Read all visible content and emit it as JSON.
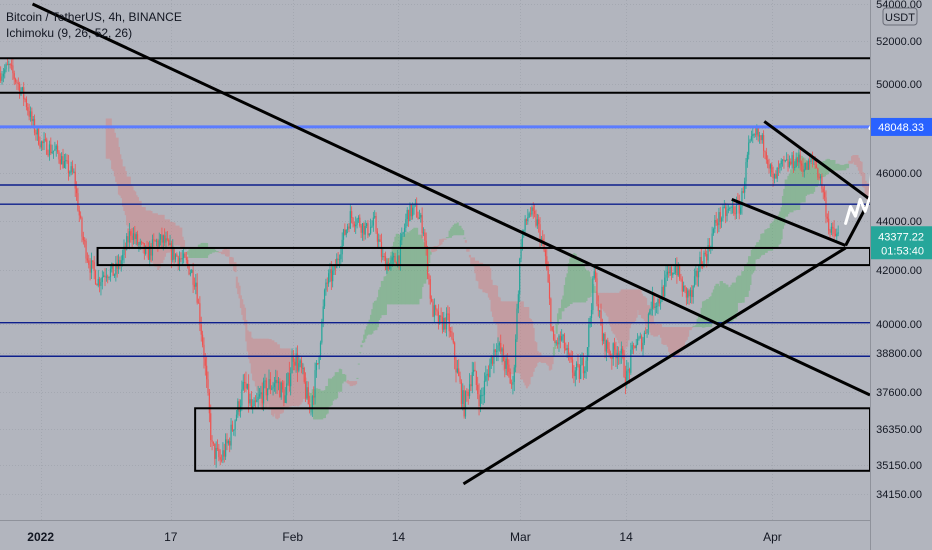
{
  "header": {
    "symbol_line": "Bitcoin / TetherUS, 4h, BINANCE",
    "indicator_line": "Ichimoku (9, 26, 52, 26)"
  },
  "currency_badge": "USDT",
  "colors": {
    "background": "#b2b5be",
    "up_candle": "#26a69a",
    "down_candle": "#ef5350",
    "drawing_black": "#000000",
    "level_blue": "#0d1f8c",
    "highlight_blue": "#5b7cff",
    "price_label_bg": "#2962ff",
    "cloud_green": "#5bb56a",
    "cloud_red": "#d98080",
    "arrow": "#ffffff"
  },
  "chart_data": {
    "type": "candlestick",
    "title": "Bitcoin / TetherUS, 4h, BINANCE",
    "indicator": "Ichimoku (9, 26, 52, 26)",
    "timeframe": "4h",
    "y_axis": {
      "ticks": [
        "54000.00",
        "52000.00",
        "50000.00",
        "48000.00",
        "46000.00",
        "44000.00",
        "42000.00",
        "40000.00",
        "38800.00",
        "37600.00",
        "36350.00",
        "35150.00",
        "34150.00"
      ],
      "ylim": [
        33200,
        54200
      ]
    },
    "x_axis": {
      "ticks": [
        {
          "label": "2022",
          "bold": true,
          "date": "2022-01-01"
        },
        {
          "label": "17",
          "bold": false,
          "date": "2022-01-17"
        },
        {
          "label": "Feb",
          "bold": false,
          "date": "2022-02-01"
        },
        {
          "label": "14",
          "bold": false,
          "date": "2022-02-14"
        },
        {
          "label": "Mar",
          "bold": false,
          "date": "2022-03-01"
        },
        {
          "label": "14",
          "bold": false,
          "date": "2022-03-14"
        },
        {
          "label": "Apr",
          "bold": false,
          "date": "2022-04-01"
        }
      ],
      "xlim": [
        "2021-12-27",
        "2022-04-13"
      ]
    },
    "current_price": {
      "value": "43377.22",
      "countdown": "01:53:40"
    },
    "highlighted_level": "48048.33",
    "price_path": [
      [
        "2021-12-27",
        50500
      ],
      [
        "2021-12-28",
        50800
      ],
      [
        "2021-12-29",
        50100
      ],
      [
        "2021-12-30",
        49300
      ],
      [
        "2021-12-31",
        48100
      ],
      [
        "2022-01-01",
        47300
      ],
      [
        "2022-01-02",
        47100
      ],
      [
        "2022-01-03",
        46900
      ],
      [
        "2022-01-04",
        46300
      ],
      [
        "2022-01-05",
        45900
      ],
      [
        "2022-01-06",
        43400
      ],
      [
        "2022-01-07",
        42200
      ],
      [
        "2022-01-08",
        41600
      ],
      [
        "2022-01-09",
        42000
      ],
      [
        "2022-01-10",
        41900
      ],
      [
        "2022-01-11",
        42500
      ],
      [
        "2022-01-12",
        43600
      ],
      [
        "2022-01-13",
        43000
      ],
      [
        "2022-01-14",
        42600
      ],
      [
        "2022-01-15",
        43100
      ],
      [
        "2022-01-16",
        43200
      ],
      [
        "2022-01-17",
        42700
      ],
      [
        "2022-01-18",
        42500
      ],
      [
        "2022-01-19",
        42200
      ],
      [
        "2022-01-20",
        41600
      ],
      [
        "2022-01-21",
        38800
      ],
      [
        "2022-01-22",
        35700
      ],
      [
        "2022-01-23",
        35300
      ],
      [
        "2022-01-24",
        35900
      ],
      [
        "2022-01-25",
        36900
      ],
      [
        "2022-01-26",
        37800
      ],
      [
        "2022-01-27",
        36900
      ],
      [
        "2022-01-28",
        37500
      ],
      [
        "2022-01-29",
        37800
      ],
      [
        "2022-01-30",
        37900
      ],
      [
        "2022-01-31",
        37400
      ],
      [
        "2022-02-01",
        38800
      ],
      [
        "2022-02-02",
        38200
      ],
      [
        "2022-02-03",
        37000
      ],
      [
        "2022-02-04",
        38500
      ],
      [
        "2022-02-05",
        41500
      ],
      [
        "2022-02-06",
        41900
      ],
      [
        "2022-02-07",
        43200
      ],
      [
        "2022-02-08",
        44200
      ],
      [
        "2022-02-09",
        44000
      ],
      [
        "2022-02-10",
        43600
      ],
      [
        "2022-02-11",
        43900
      ],
      [
        "2022-02-12",
        42400
      ],
      [
        "2022-02-13",
        42200
      ],
      [
        "2022-02-14",
        42600
      ],
      [
        "2022-02-15",
        44300
      ],
      [
        "2022-02-16",
        44500
      ],
      [
        "2022-02-17",
        43700
      ],
      [
        "2022-02-18",
        40600
      ],
      [
        "2022-02-19",
        40000
      ],
      [
        "2022-02-20",
        40100
      ],
      [
        "2022-02-21",
        38400
      ],
      [
        "2022-02-22",
        37100
      ],
      [
        "2022-02-23",
        38300
      ],
      [
        "2022-02-24",
        37300
      ],
      [
        "2022-02-25",
        38300
      ],
      [
        "2022-02-26",
        39200
      ],
      [
        "2022-02-27",
        38500
      ],
      [
        "2022-02-28",
        37700
      ],
      [
        "2022-03-01",
        43200
      ],
      [
        "2022-03-02",
        44400
      ],
      [
        "2022-03-03",
        43900
      ],
      [
        "2022-03-04",
        42500
      ],
      [
        "2022-03-05",
        39100
      ],
      [
        "2022-03-06",
        39400
      ],
      [
        "2022-03-07",
        38400
      ],
      [
        "2022-03-08",
        38100
      ],
      [
        "2022-03-09",
        38700
      ],
      [
        "2022-03-10",
        41900
      ],
      [
        "2022-03-11",
        39400
      ],
      [
        "2022-03-12",
        38800
      ],
      [
        "2022-03-13",
        39000
      ],
      [
        "2022-03-14",
        38000
      ],
      [
        "2022-03-15",
        39200
      ],
      [
        "2022-03-16",
        39300
      ],
      [
        "2022-03-17",
        40800
      ],
      [
        "2022-03-18",
        40900
      ],
      [
        "2022-03-19",
        41700
      ],
      [
        "2022-03-20",
        42200
      ],
      [
        "2022-03-21",
        41200
      ],
      [
        "2022-03-22",
        41000
      ],
      [
        "2022-03-23",
        42300
      ],
      [
        "2022-03-24",
        42800
      ],
      [
        "2022-03-25",
        44000
      ],
      [
        "2022-03-26",
        44300
      ],
      [
        "2022-03-27",
        44500
      ],
      [
        "2022-03-28",
        44600
      ],
      [
        "2022-03-29",
        47100
      ],
      [
        "2022-03-30",
        47700
      ],
      [
        "2022-03-31",
        47200
      ],
      [
        "2022-04-01",
        45600
      ],
      [
        "2022-04-02",
        46300
      ],
      [
        "2022-04-03",
        46400
      ],
      [
        "2022-04-04",
        46600
      ],
      [
        "2022-04-05",
        46200
      ],
      [
        "2022-04-06",
        46600
      ],
      [
        "2022-04-07",
        45500
      ],
      [
        "2022-04-08",
        43500
      ],
      [
        "2022-04-09",
        43377
      ]
    ]
  },
  "drawings": {
    "horizontal_levels": [
      {
        "price": 51200,
        "style": "black",
        "from": "2021-12-27",
        "to": "2022-04-13"
      },
      {
        "price": 49600,
        "style": "black",
        "from": "2021-12-27",
        "to": "2022-04-13"
      },
      {
        "price": 48048.33,
        "style": "highlight",
        "from": "2021-12-27",
        "to": "2022-04-13"
      },
      {
        "price": 45500,
        "style": "blue",
        "from": "2021-12-27",
        "to": "2022-04-13"
      },
      {
        "price": 44700,
        "style": "blue",
        "from": "2021-12-27",
        "to": "2022-04-13"
      },
      {
        "price": 40050,
        "style": "blue",
        "from": "2021-12-27",
        "to": "2022-04-13"
      },
      {
        "price": 38700,
        "style": "blue",
        "from": "2021-12-27",
        "to": "2022-04-13"
      }
    ],
    "zones": [
      {
        "from": "2022-01-08",
        "to": "2022-04-13",
        "top": 42900,
        "bottom": 42200
      },
      {
        "from": "2022-01-20",
        "to": "2022-04-13",
        "top": 37050,
        "bottom": 34950
      }
    ],
    "trendlines": [
      {
        "from": [
          "2021-12-31",
          54000
        ],
        "to": [
          "2022-04-13",
          37500
        ]
      },
      {
        "from": [
          "2022-02-22",
          34500
        ],
        "to": [
          "2022-04-10",
          42900
        ]
      },
      {
        "from": [
          "2022-03-27",
          44900
        ],
        "to": [
          "2022-04-10",
          43000
        ]
      },
      {
        "from": [
          "2022-03-31",
          48300
        ],
        "to": [
          "2022-04-13",
          44900
        ]
      },
      {
        "from": [
          "2022-04-10",
          43000
        ],
        "to": [
          "2022-04-13",
          44900
        ]
      }
    ],
    "projection_arrow": [
      [
        "2022-04-10",
        43900
      ],
      [
        "2022-04-11",
        44600
      ],
      [
        "2022-04-11",
        44200
      ],
      [
        "2022-04-12",
        44900
      ],
      [
        "2022-04-12",
        44400
      ],
      [
        "2022-04-13",
        45000
      ],
      [
        "2022-04-13",
        48300
      ]
    ]
  }
}
